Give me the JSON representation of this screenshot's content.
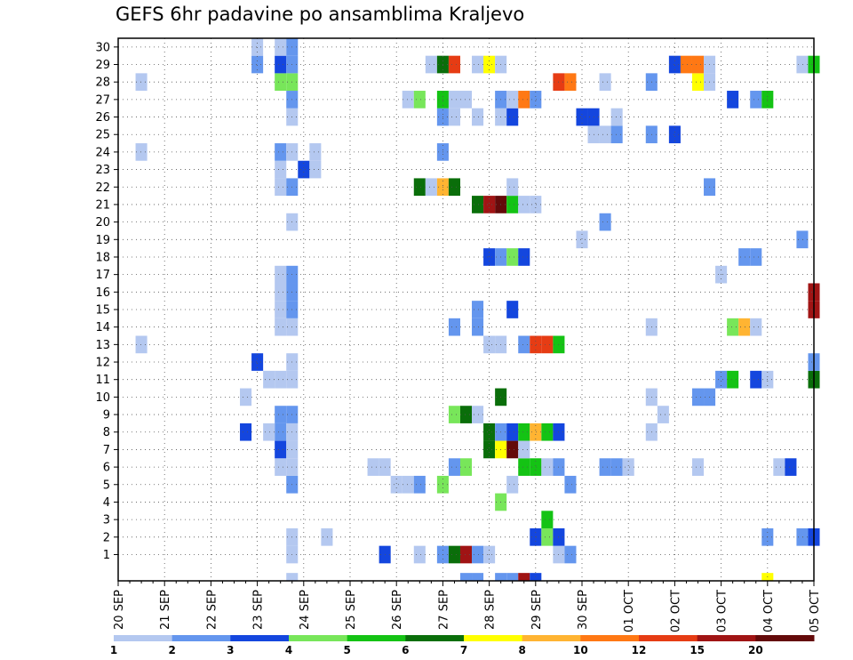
{
  "chart_data": {
    "type": "heatmap",
    "title": "GEFS 6hr padavine po ansamblima Kraljevo",
    "xlabel": "",
    "ylabel": "",
    "x_ticks": [
      "20 SEP",
      "21 SEP",
      "22 SEP",
      "23 SEP",
      "24 SEP",
      "25 SEP",
      "26 SEP",
      "27 SEP",
      "28 SEP",
      "29 SEP",
      "30 SEP",
      "01 OCT",
      "02 OCT",
      "03 OCT",
      "04 OCT",
      "05 OCT"
    ],
    "y_ticks": [
      "1",
      "2",
      "3",
      "4",
      "5",
      "6",
      "7",
      "8",
      "9",
      "10",
      "11",
      "12",
      "13",
      "14",
      "15",
      "16",
      "17",
      "18",
      "19",
      "20",
      "21",
      "22",
      "23",
      "24",
      "25",
      "26",
      "27",
      "28",
      "29",
      "30"
    ],
    "time_steps_per_day": 4,
    "n_steps": 61,
    "members": 31,
    "ylim": [
      0,
      30
    ],
    "grid": true,
    "colorbar": {
      "labels": [
        "1",
        "2",
        "3",
        "4",
        "5",
        "6",
        "7",
        "8",
        "10",
        "12",
        "15",
        "20"
      ],
      "colors": [
        "#b4c8f0",
        "#6496ee",
        "#1446de",
        "#78e65a",
        "#14c314",
        "#0a6e0a",
        "#ffff00",
        "#ffb432",
        "#ff7814",
        "#e63c14",
        "#a01414",
        "#640a0a"
      ]
    },
    "cells": [
      [
        1,
        16,
        1
      ],
      [
        1,
        24,
        3
      ],
      [
        1,
        27,
        1
      ],
      [
        1,
        29,
        2
      ],
      [
        1,
        30,
        6
      ],
      [
        1,
        31,
        11
      ],
      [
        1,
        32,
        2
      ],
      [
        1,
        33,
        1
      ],
      [
        1,
        39,
        1
      ],
      [
        1,
        40,
        2
      ],
      [
        2,
        16,
        1
      ],
      [
        2,
        19,
        1
      ],
      [
        2,
        37,
        3
      ],
      [
        2,
        38,
        4
      ],
      [
        2,
        39,
        3
      ],
      [
        2,
        57,
        2
      ],
      [
        2,
        60,
        2
      ],
      [
        2,
        61,
        3
      ],
      [
        3,
        38,
        5
      ],
      [
        4,
        34,
        4
      ],
      [
        5,
        16,
        2
      ],
      [
        5,
        25,
        1
      ],
      [
        5,
        26,
        1
      ],
      [
        5,
        27,
        2
      ],
      [
        5,
        29,
        4
      ],
      [
        5,
        35,
        1
      ],
      [
        5,
        40,
        2
      ],
      [
        6,
        15,
        1
      ],
      [
        6,
        16,
        1
      ],
      [
        6,
        23,
        1
      ],
      [
        6,
        24,
        1
      ],
      [
        6,
        30,
        2
      ],
      [
        6,
        31,
        4
      ],
      [
        6,
        36,
        5
      ],
      [
        6,
        37,
        5
      ],
      [
        6,
        38,
        1
      ],
      [
        6,
        39,
        2
      ],
      [
        6,
        43,
        2
      ],
      [
        6,
        44,
        2
      ],
      [
        6,
        45,
        1
      ],
      [
        6,
        51,
        1
      ],
      [
        6,
        58,
        1
      ],
      [
        6,
        59,
        3
      ],
      [
        7,
        15,
        3
      ],
      [
        7,
        16,
        1
      ],
      [
        7,
        33,
        6
      ],
      [
        7,
        34,
        7
      ],
      [
        7,
        35,
        12
      ],
      [
        7,
        36,
        1
      ],
      [
        8,
        15,
        2
      ],
      [
        8,
        16,
        1
      ],
      [
        8,
        12,
        3
      ],
      [
        8,
        14,
        1
      ],
      [
        8,
        33,
        6
      ],
      [
        8,
        34,
        2
      ],
      [
        8,
        35,
        3
      ],
      [
        8,
        36,
        5
      ],
      [
        8,
        37,
        8
      ],
      [
        8,
        38,
        5
      ],
      [
        8,
        39,
        3
      ],
      [
        8,
        47,
        1
      ],
      [
        9,
        15,
        2
      ],
      [
        9,
        16,
        2
      ],
      [
        9,
        30,
        4
      ],
      [
        9,
        31,
        6
      ],
      [
        9,
        32,
        1
      ],
      [
        9,
        48,
        1
      ],
      [
        10,
        12,
        1
      ],
      [
        10,
        34,
        6
      ],
      [
        10,
        47,
        1
      ],
      [
        10,
        51,
        2
      ],
      [
        10,
        52,
        2
      ],
      [
        11,
        15,
        1
      ],
      [
        11,
        16,
        1
      ],
      [
        11,
        14,
        1
      ],
      [
        11,
        53,
        2
      ],
      [
        11,
        54,
        5
      ],
      [
        11,
        56,
        3
      ],
      [
        11,
        57,
        1
      ],
      [
        11,
        61,
        6
      ],
      [
        12,
        16,
        1
      ],
      [
        12,
        13,
        3
      ],
      [
        12,
        61,
        2
      ],
      [
        13,
        3,
        1
      ],
      [
        13,
        33,
        1
      ],
      [
        13,
        34,
        1
      ],
      [
        13,
        36,
        2
      ],
      [
        13,
        37,
        10
      ],
      [
        13,
        38,
        10
      ],
      [
        13,
        39,
        5
      ],
      [
        14,
        15,
        1
      ],
      [
        14,
        16,
        1
      ],
      [
        14,
        30,
        2
      ],
      [
        14,
        32,
        2
      ],
      [
        14,
        47,
        1
      ],
      [
        14,
        54,
        4
      ],
      [
        14,
        55,
        8
      ],
      [
        14,
        56,
        1
      ],
      [
        15,
        15,
        1
      ],
      [
        15,
        16,
        2
      ],
      [
        15,
        32,
        2
      ],
      [
        15,
        35,
        3
      ],
      [
        15,
        61,
        11
      ],
      [
        16,
        15,
        1
      ],
      [
        16,
        16,
        2
      ],
      [
        16,
        61,
        11
      ],
      [
        17,
        15,
        1
      ],
      [
        17,
        16,
        2
      ],
      [
        17,
        53,
        1
      ],
      [
        18,
        33,
        3
      ],
      [
        18,
        34,
        2
      ],
      [
        18,
        35,
        4
      ],
      [
        18,
        36,
        3
      ],
      [
        18,
        55,
        2
      ],
      [
        18,
        56,
        2
      ],
      [
        19,
        41,
        1
      ],
      [
        19,
        60,
        2
      ],
      [
        20,
        16,
        1
      ],
      [
        20,
        43,
        2
      ],
      [
        21,
        32,
        6
      ],
      [
        21,
        33,
        11
      ],
      [
        21,
        34,
        12
      ],
      [
        21,
        35,
        5
      ],
      [
        21,
        36,
        1
      ],
      [
        21,
        37,
        1
      ],
      [
        22,
        15,
        1
      ],
      [
        22,
        16,
        2
      ],
      [
        22,
        27,
        6
      ],
      [
        22,
        28,
        1
      ],
      [
        22,
        29,
        8
      ],
      [
        22,
        30,
        6
      ],
      [
        22,
        35,
        1
      ],
      [
        22,
        52,
        2
      ],
      [
        23,
        15,
        1
      ],
      [
        23,
        17,
        3
      ],
      [
        23,
        18,
        1
      ],
      [
        24,
        3,
        1
      ],
      [
        24,
        15,
        2
      ],
      [
        24,
        16,
        1
      ],
      [
        24,
        18,
        1
      ],
      [
        24,
        29,
        2
      ],
      [
        25,
        42,
        1
      ],
      [
        25,
        43,
        1
      ],
      [
        25,
        44,
        2
      ],
      [
        25,
        47,
        2
      ],
      [
        25,
        49,
        3
      ],
      [
        26,
        16,
        1
      ],
      [
        26,
        29,
        2
      ],
      [
        26,
        30,
        1
      ],
      [
        26,
        32,
        1
      ],
      [
        26,
        34,
        1
      ],
      [
        26,
        35,
        3
      ],
      [
        26,
        41,
        3
      ],
      [
        26,
        42,
        3
      ],
      [
        26,
        44,
        1
      ],
      [
        27,
        16,
        2
      ],
      [
        27,
        26,
        1
      ],
      [
        27,
        27,
        4
      ],
      [
        27,
        29,
        5
      ],
      [
        27,
        30,
        1
      ],
      [
        27,
        31,
        1
      ],
      [
        27,
        34,
        2
      ],
      [
        27,
        35,
        1
      ],
      [
        27,
        36,
        9
      ],
      [
        27,
        37,
        2
      ],
      [
        27,
        54,
        3
      ],
      [
        27,
        56,
        2
      ],
      [
        27,
        57,
        5
      ],
      [
        28,
        3,
        1
      ],
      [
        28,
        15,
        4
      ],
      [
        28,
        16,
        4
      ],
      [
        28,
        39,
        10
      ],
      [
        28,
        40,
        9
      ],
      [
        28,
        43,
        1
      ],
      [
        28,
        47,
        2
      ],
      [
        28,
        51,
        7
      ],
      [
        28,
        52,
        1
      ],
      [
        29,
        15,
        3
      ],
      [
        29,
        16,
        2
      ],
      [
        29,
        13,
        2
      ],
      [
        29,
        28,
        1
      ],
      [
        29,
        29,
        6
      ],
      [
        29,
        30,
        10
      ],
      [
        29,
        32,
        1
      ],
      [
        29,
        33,
        7
      ],
      [
        29,
        34,
        1
      ],
      [
        29,
        49,
        3
      ],
      [
        29,
        50,
        9
      ],
      [
        29,
        51,
        9
      ],
      [
        29,
        52,
        1
      ],
      [
        29,
        60,
        1
      ],
      [
        29,
        61,
        5
      ],
      [
        30,
        15,
        1
      ],
      [
        30,
        16,
        2
      ],
      [
        30,
        13,
        1
      ]
    ],
    "bottom_row_cells": [
      [
        16,
        1
      ],
      [
        31,
        2
      ],
      [
        32,
        2
      ],
      [
        34,
        2
      ],
      [
        35,
        2
      ],
      [
        36,
        11
      ],
      [
        37,
        3
      ],
      [
        57,
        7
      ]
    ]
  }
}
